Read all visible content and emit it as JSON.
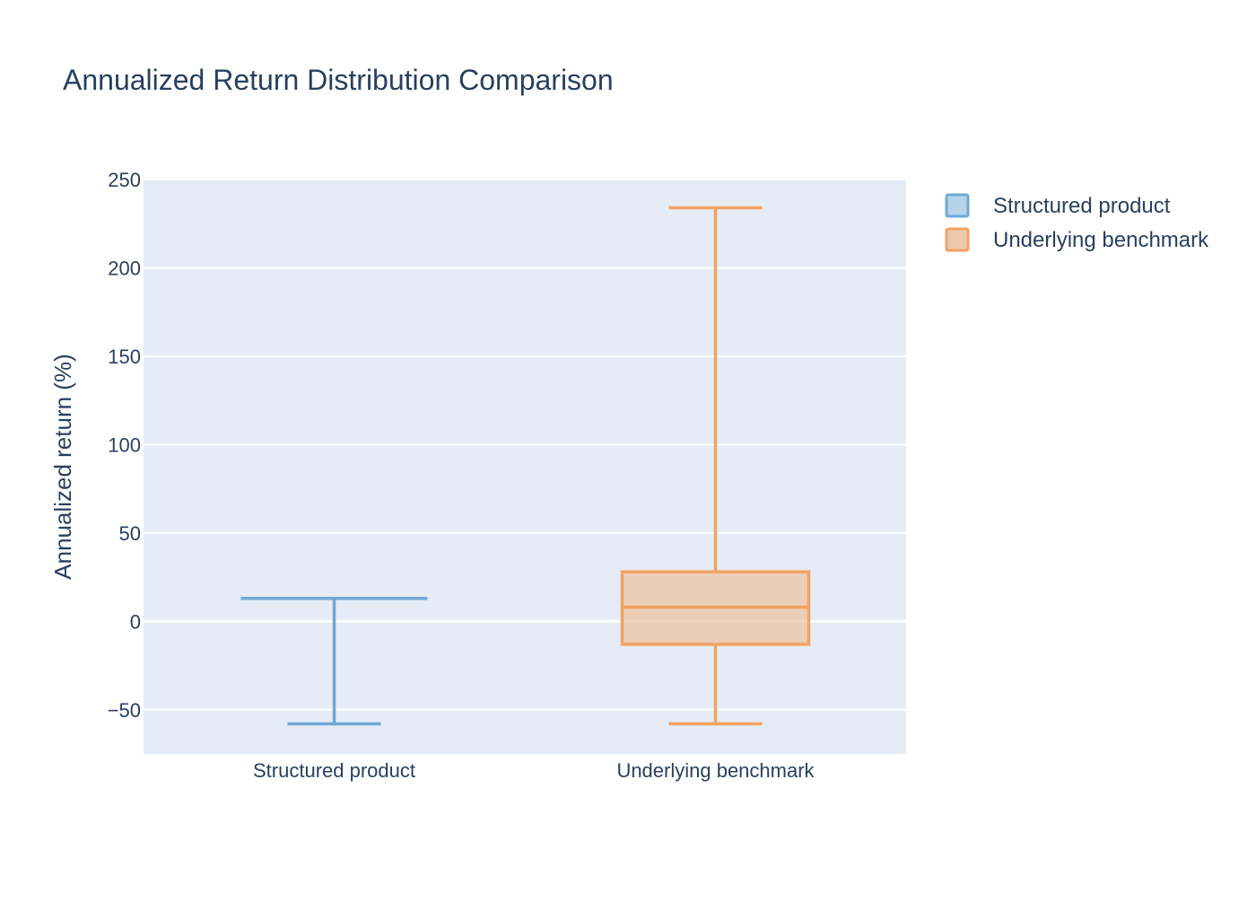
{
  "chart_data": {
    "type": "box",
    "title": "Annualized Return Distribution Comparison",
    "xlabel": "",
    "ylabel": "Annualized return (%)",
    "ylim": [
      -75,
      250
    ],
    "yticks": [
      -50,
      0,
      50,
      100,
      150,
      200,
      250
    ],
    "ytick_labels": [
      "−50",
      "0",
      "50",
      "100",
      "150",
      "200",
      "250"
    ],
    "categories": [
      "Structured product",
      "Underlying benchmark"
    ],
    "grid": true,
    "legend_position": "top-right",
    "series": [
      {
        "name": "Structured product",
        "color": "#6fa8d6",
        "fill": "#b6d3ea",
        "min": -58,
        "q1": 13,
        "median": 13,
        "q3": 13,
        "max": 13
      },
      {
        "name": "Underlying benchmark",
        "color": "#f4a261",
        "fill": "#ecc9ad",
        "min": -58,
        "q1": -13,
        "median": 8,
        "q3": 28,
        "max": 234
      }
    ]
  },
  "colors": {
    "plot_background": "#e5ecf6",
    "grid": "#ffffff",
    "text": "#2a3f5f"
  }
}
